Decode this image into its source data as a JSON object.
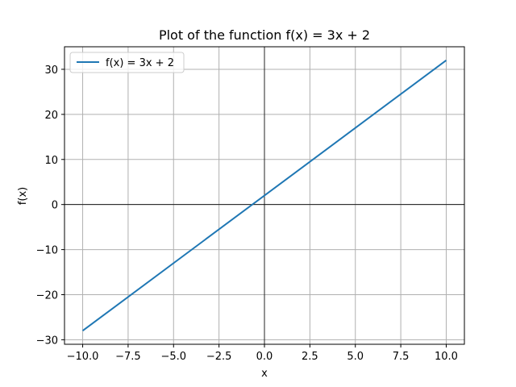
{
  "chart_data": {
    "type": "line",
    "title": "Plot of the function f(x) = 3x + 2",
    "xlabel": "x",
    "ylabel": "f(x)",
    "xlim": [
      -11,
      11
    ],
    "ylim": [
      -31,
      35
    ],
    "grid": true,
    "legend_position": "top-left",
    "x_ticks": [
      -10.0,
      -7.5,
      -5.0,
      -2.5,
      0.0,
      2.5,
      5.0,
      7.5,
      10.0
    ],
    "x_tick_labels": [
      "−10.0",
      "−7.5",
      "−5.0",
      "−2.5",
      "0.0",
      "2.5",
      "5.0",
      "7.5",
      "10.0"
    ],
    "y_ticks": [
      -30,
      -20,
      -10,
      0,
      10,
      20,
      30
    ],
    "y_tick_labels": [
      "−30",
      "−20",
      "−10",
      "0",
      "10",
      "20",
      "30"
    ],
    "series": [
      {
        "name": "f(x) = 3x + 2",
        "color": "#1f77b4",
        "x": [
          -10,
          10
        ],
        "y": [
          -28,
          32
        ]
      }
    ]
  }
}
